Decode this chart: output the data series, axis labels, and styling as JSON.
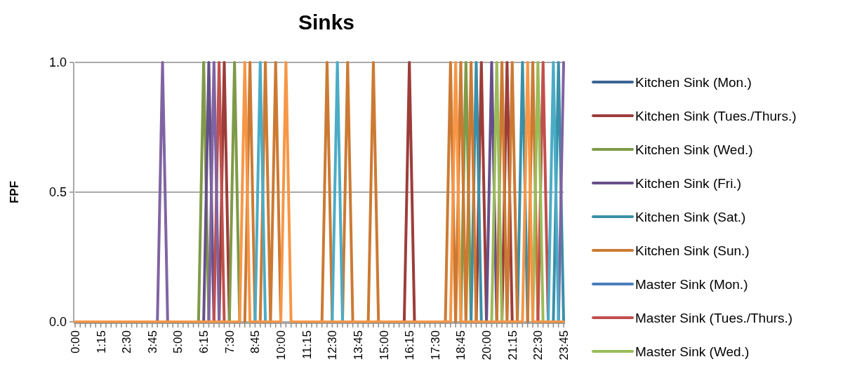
{
  "chart_data": {
    "type": "line",
    "title": "Sinks",
    "ylabel": "FPF",
    "categories": [
      "0:00",
      null,
      null,
      null,
      null,
      "1:15",
      null,
      null,
      null,
      null,
      "2:30",
      null,
      null,
      null,
      null,
      "3:45",
      null,
      null,
      null,
      null,
      "5:00",
      null,
      null,
      null,
      null,
      "6:15",
      null,
      null,
      null,
      null,
      "7:30",
      null,
      null,
      null,
      null,
      "8:45",
      null,
      null,
      null,
      null,
      "10:00",
      null,
      null,
      null,
      null,
      "11:15",
      null,
      null,
      null,
      null,
      "12:30",
      null,
      null,
      null,
      null,
      "13:45",
      null,
      null,
      null,
      null,
      "15:00",
      null,
      null,
      null,
      null,
      "16:15",
      null,
      null,
      null,
      null,
      "17:30",
      null,
      null,
      null,
      null,
      "18:45",
      null,
      null,
      null,
      null,
      "20:00",
      null,
      null,
      null,
      null,
      "21:15",
      null,
      null,
      null,
      null,
      "22:30",
      null,
      null,
      null,
      null,
      "23:45"
    ],
    "ylim": [
      0,
      1
    ],
    "yticks": [
      {
        "value": 0,
        "label": "0.0"
      },
      {
        "value": 0.5,
        "label": "0.5"
      },
      {
        "value": 1,
        "label": "1.0"
      }
    ],
    "grid": "y",
    "legend": "right",
    "marker": "none",
    "line_style": "solid",
    "series": [
      {
        "name": "Kitchen Sink (Mon.)",
        "color": "#3c6494",
        "values": [
          null,
          null,
          null,
          null,
          null,
          null,
          null,
          null,
          null,
          null,
          null,
          null,
          null,
          null,
          null,
          null,
          null,
          null,
          null,
          null,
          null,
          null,
          null,
          null,
          null,
          null,
          null,
          null,
          null,
          null,
          null,
          null,
          null,
          null,
          null,
          null,
          null,
          null,
          null,
          null,
          null,
          null,
          null,
          null,
          null,
          null,
          null,
          null,
          null,
          null,
          null,
          null,
          null,
          null,
          null,
          null,
          null,
          null,
          null,
          null,
          null,
          null,
          null,
          null,
          null,
          null,
          null,
          null,
          null,
          null,
          null,
          null,
          null,
          null,
          null,
          null,
          null,
          null,
          null,
          null,
          null,
          null,
          null,
          null,
          null,
          null,
          null,
          null,
          null,
          null,
          null,
          null,
          null,
          null,
          null,
          null
        ]
      },
      {
        "name": "Kitchen Sink (Tues./Thurs.)",
        "color": "#9c3d3a",
        "values": [
          null,
          null,
          null,
          null,
          null,
          null,
          null,
          null,
          null,
          null,
          null,
          null,
          null,
          null,
          null,
          null,
          null,
          null,
          null,
          null,
          null,
          null,
          null,
          null,
          null,
          null,
          null,
          null,
          0,
          1,
          0,
          null,
          null,
          null,
          null,
          null,
          null,
          null,
          null,
          null,
          null,
          null,
          null,
          null,
          null,
          null,
          null,
          null,
          null,
          null,
          null,
          null,
          null,
          null,
          null,
          null,
          null,
          null,
          null,
          null,
          null,
          null,
          null,
          null,
          0,
          1,
          0,
          null,
          null,
          null,
          null,
          null,
          null,
          null,
          null,
          null,
          null,
          null,
          0,
          1,
          0,
          null,
          null,
          0,
          1,
          0,
          null,
          null,
          null,
          null,
          null,
          null,
          null,
          null,
          null,
          null
        ]
      },
      {
        "name": "Kitchen Sink (Wed.)",
        "color": "#7f9a48",
        "values": [
          null,
          null,
          null,
          null,
          null,
          null,
          null,
          null,
          null,
          null,
          null,
          null,
          null,
          null,
          null,
          null,
          null,
          null,
          null,
          null,
          null,
          null,
          null,
          null,
          0,
          1,
          0,
          null,
          null,
          null,
          0,
          1,
          0,
          null,
          null,
          null,
          null,
          null,
          null,
          null,
          null,
          null,
          null,
          null,
          null,
          null,
          null,
          null,
          null,
          null,
          null,
          null,
          null,
          null,
          null,
          null,
          null,
          null,
          null,
          null,
          null,
          null,
          null,
          null,
          null,
          null,
          null,
          null,
          null,
          null,
          null,
          null,
          null,
          null,
          null,
          0,
          1,
          0,
          null,
          null,
          null,
          null,
          null,
          null,
          null,
          null,
          null,
          null,
          null,
          null,
          null,
          null,
          null,
          null,
          null,
          null
        ]
      },
      {
        "name": "Kitchen Sink (Fri.)",
        "color": "#67508a",
        "values": [
          null,
          null,
          null,
          null,
          null,
          null,
          null,
          null,
          null,
          null,
          null,
          null,
          null,
          null,
          null,
          null,
          null,
          null,
          null,
          null,
          null,
          null,
          null,
          null,
          null,
          0,
          1,
          0,
          null,
          null,
          null,
          null,
          null,
          null,
          null,
          null,
          null,
          null,
          null,
          null,
          null,
          null,
          null,
          null,
          null,
          null,
          null,
          null,
          null,
          null,
          null,
          null,
          null,
          null,
          null,
          null,
          null,
          null,
          null,
          null,
          null,
          null,
          null,
          null,
          null,
          null,
          null,
          null,
          null,
          null,
          null,
          null,
          null,
          null,
          null,
          null,
          null,
          null,
          null,
          null,
          0,
          1,
          0,
          null,
          null,
          null,
          null,
          null,
          null,
          null,
          null,
          null,
          null,
          null,
          null,
          null
        ]
      },
      {
        "name": "Kitchen Sink (Sat.)",
        "color": "#3a90a8",
        "values": [
          null,
          null,
          null,
          null,
          null,
          null,
          null,
          null,
          null,
          null,
          null,
          null,
          null,
          null,
          null,
          null,
          null,
          null,
          null,
          null,
          null,
          null,
          null,
          null,
          null,
          null,
          null,
          null,
          null,
          null,
          null,
          null,
          null,
          null,
          null,
          null,
          null,
          null,
          null,
          null,
          null,
          null,
          null,
          null,
          null,
          null,
          null,
          null,
          null,
          null,
          null,
          null,
          null,
          null,
          null,
          null,
          null,
          null,
          null,
          null,
          null,
          null,
          null,
          null,
          null,
          null,
          null,
          null,
          null,
          null,
          null,
          null,
          null,
          null,
          null,
          null,
          null,
          0,
          1,
          0,
          null,
          null,
          null,
          null,
          null,
          null,
          0,
          1,
          0,
          null,
          null,
          null,
          null,
          0,
          1,
          0
        ]
      },
      {
        "name": "Kitchen Sink (Sun.)",
        "color": "#cc7a33",
        "values": [
          null,
          null,
          null,
          null,
          null,
          null,
          null,
          null,
          null,
          null,
          null,
          null,
          null,
          null,
          null,
          null,
          null,
          null,
          null,
          null,
          null,
          null,
          null,
          null,
          null,
          null,
          null,
          null,
          null,
          null,
          null,
          null,
          null,
          0,
          1,
          0,
          0,
          1,
          0,
          1,
          0,
          null,
          null,
          null,
          null,
          null,
          null,
          null,
          0,
          1,
          0,
          null,
          0,
          1,
          0,
          null,
          null,
          0,
          1,
          0,
          null,
          null,
          null,
          null,
          null,
          null,
          null,
          null,
          null,
          null,
          null,
          null,
          0,
          1,
          0,
          1,
          0,
          1,
          0,
          null,
          null,
          null,
          0,
          1,
          0,
          1,
          0,
          null,
          0,
          1,
          0,
          null,
          null,
          null,
          null,
          null
        ]
      },
      {
        "name": "Master Sink (Mon.)",
        "color": "#4a7ebb",
        "values": [
          null,
          null,
          null,
          null,
          null,
          null,
          null,
          null,
          null,
          null,
          null,
          null,
          null,
          null,
          null,
          null,
          null,
          null,
          null,
          null,
          null,
          null,
          null,
          null,
          null,
          null,
          null,
          null,
          null,
          null,
          null,
          null,
          null,
          null,
          null,
          null,
          null,
          null,
          null,
          null,
          null,
          null,
          null,
          null,
          null,
          null,
          null,
          null,
          null,
          null,
          null,
          null,
          null,
          null,
          null,
          null,
          null,
          null,
          null,
          null,
          null,
          null,
          null,
          null,
          null,
          null,
          null,
          null,
          null,
          null,
          null,
          null,
          null,
          null,
          null,
          null,
          null,
          null,
          null,
          null,
          null,
          null,
          null,
          null,
          null,
          null,
          null,
          null,
          null,
          null,
          null,
          null,
          null,
          null,
          null,
          null
        ]
      },
      {
        "name": "Master Sink (Tues./Thurs.)",
        "color": "#c0504d",
        "values": [
          null,
          null,
          null,
          null,
          null,
          null,
          null,
          null,
          null,
          null,
          null,
          null,
          null,
          null,
          null,
          null,
          null,
          null,
          null,
          null,
          null,
          null,
          null,
          null,
          null,
          null,
          null,
          0,
          1,
          0,
          null,
          null,
          null,
          null,
          null,
          null,
          null,
          null,
          null,
          null,
          null,
          null,
          null,
          null,
          null,
          null,
          null,
          null,
          null,
          null,
          null,
          null,
          null,
          null,
          null,
          null,
          null,
          null,
          null,
          null,
          null,
          null,
          null,
          null,
          null,
          null,
          null,
          null,
          null,
          null,
          null,
          null,
          null,
          null,
          null,
          null,
          null,
          null,
          null,
          null,
          null,
          null,
          null,
          null,
          null,
          null,
          null,
          null,
          null,
          null,
          0,
          1,
          0,
          null,
          null,
          null
        ]
      },
      {
        "name": "Master Sink (Wed.)",
        "color": "#9bbb59",
        "values": [
          null,
          null,
          null,
          null,
          null,
          null,
          null,
          null,
          null,
          null,
          null,
          null,
          null,
          null,
          null,
          null,
          null,
          null,
          null,
          null,
          null,
          null,
          null,
          null,
          null,
          null,
          null,
          null,
          null,
          null,
          null,
          null,
          null,
          null,
          null,
          null,
          null,
          null,
          null,
          null,
          null,
          null,
          null,
          null,
          null,
          null,
          null,
          null,
          null,
          null,
          null,
          null,
          null,
          null,
          null,
          null,
          null,
          null,
          null,
          null,
          null,
          null,
          null,
          null,
          null,
          null,
          null,
          null,
          null,
          null,
          null,
          null,
          null,
          null,
          null,
          null,
          null,
          null,
          null,
          null,
          null,
          0,
          1,
          0,
          null,
          null,
          null,
          null,
          null,
          0,
          1,
          0,
          null,
          null,
          null,
          null
        ]
      },
      {
        "color": "#8064a2",
        "values": [
          null,
          null,
          null,
          null,
          null,
          null,
          null,
          null,
          null,
          null,
          null,
          null,
          null,
          null,
          null,
          null,
          0,
          1,
          0,
          null,
          null,
          null,
          null,
          null,
          null,
          null,
          0,
          1,
          0,
          null,
          null,
          null,
          null,
          null,
          null,
          null,
          null,
          null,
          null,
          null,
          null,
          null,
          null,
          null,
          null,
          null,
          null,
          null,
          null,
          null,
          null,
          null,
          null,
          null,
          null,
          null,
          null,
          null,
          null,
          null,
          null,
          null,
          null,
          null,
          null,
          null,
          null,
          null,
          null,
          null,
          null,
          null,
          null,
          null,
          null,
          null,
          null,
          null,
          null,
          null,
          null,
          null,
          null,
          null,
          null,
          null,
          null,
          null,
          null,
          null,
          null,
          null,
          null,
          null,
          0,
          1
        ]
      },
      {
        "color": "#4bacc6",
        "values": [
          null,
          null,
          null,
          null,
          null,
          null,
          null,
          null,
          null,
          null,
          null,
          null,
          null,
          null,
          null,
          null,
          null,
          null,
          null,
          null,
          null,
          null,
          null,
          null,
          null,
          null,
          null,
          null,
          null,
          null,
          null,
          null,
          null,
          null,
          null,
          0,
          1,
          0,
          null,
          null,
          null,
          null,
          null,
          null,
          null,
          null,
          null,
          null,
          null,
          null,
          0,
          1,
          0,
          null,
          null,
          null,
          null,
          null,
          null,
          null,
          null,
          null,
          null,
          null,
          null,
          null,
          null,
          null,
          null,
          null,
          null,
          null,
          null,
          null,
          null,
          null,
          null,
          null,
          null,
          null,
          null,
          null,
          null,
          null,
          null,
          null,
          null,
          null,
          null,
          null,
          null,
          null,
          0,
          1,
          0,
          null
        ]
      },
      {
        "color": "#f79646",
        "values": [
          0,
          0,
          0,
          0,
          0,
          0,
          0,
          0,
          0,
          0,
          0,
          0,
          0,
          0,
          0,
          0,
          0,
          0,
          0,
          0,
          0,
          0,
          0,
          0,
          0,
          0,
          0,
          0,
          0,
          0,
          0,
          0,
          0,
          1,
          0,
          0,
          0,
          0,
          0,
          0,
          0,
          1,
          0,
          0,
          0,
          0,
          0,
          0,
          0,
          0,
          0,
          0,
          0,
          0,
          0,
          0,
          0,
          0,
          0,
          0,
          0,
          0,
          0,
          0,
          0,
          0,
          0,
          0,
          0,
          0,
          0,
          0,
          0,
          0,
          1,
          0,
          0,
          0,
          0,
          0,
          0,
          0,
          0,
          0,
          0,
          0,
          0,
          0,
          1,
          0,
          0,
          0,
          0,
          0,
          0,
          0
        ]
      }
    ]
  }
}
